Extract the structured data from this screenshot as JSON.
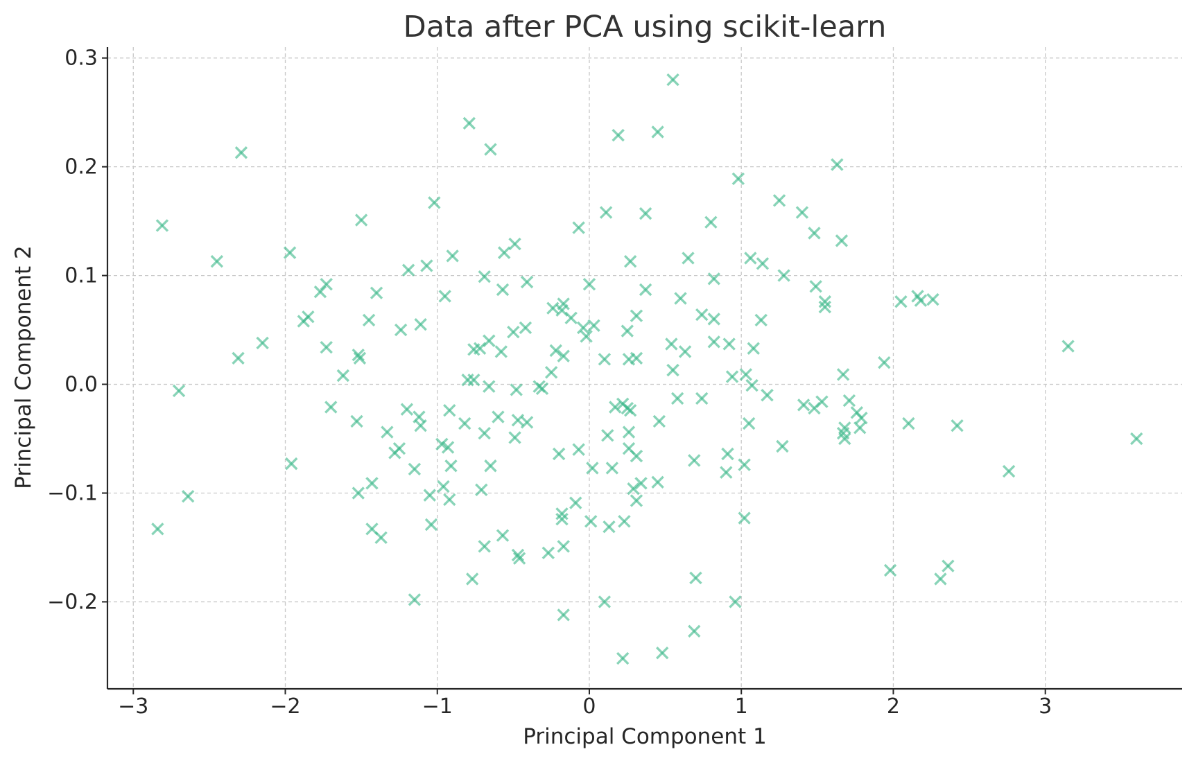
{
  "chart_data": {
    "type": "scatter",
    "title": "Data after PCA using scikit-learn",
    "xlabel": "Principal Component 1",
    "ylabel": "Principal Component 2",
    "xlim": [
      -3.17,
      3.9
    ],
    "ylim": [
      -0.28,
      0.31
    ],
    "x_ticks": [
      -3,
      -2,
      -1,
      0,
      1,
      2,
      3
    ],
    "x_tick_labels": [
      "−3",
      "−2",
      "−1",
      "0",
      "1",
      "2",
      "3"
    ],
    "y_ticks": [
      -0.2,
      -0.1,
      0.0,
      0.1,
      0.2,
      0.3
    ],
    "y_tick_labels": [
      "−0.2",
      "−0.1",
      "0.0",
      "0.1",
      "0.2",
      "0.3"
    ],
    "grid": true,
    "marker": "x",
    "color": "#3cb88a",
    "points": [
      [
        0.55,
        0.28
      ],
      [
        -0.79,
        0.24
      ],
      [
        -0.65,
        0.216
      ],
      [
        0.19,
        0.229
      ],
      [
        0.45,
        0.232
      ],
      [
        -2.29,
        0.213
      ],
      [
        1.63,
        0.202
      ],
      [
        0.98,
        0.189
      ],
      [
        -1.02,
        0.167
      ],
      [
        -2.81,
        0.146
      ],
      [
        -1.5,
        0.151
      ],
      [
        0.11,
        0.158
      ],
      [
        0.37,
        0.157
      ],
      [
        0.8,
        0.149
      ],
      [
        -0.07,
        0.144
      ],
      [
        1.25,
        0.169
      ],
      [
        1.4,
        0.158
      ],
      [
        1.48,
        0.139
      ],
      [
        1.66,
        0.132
      ],
      [
        -0.49,
        0.129
      ],
      [
        -0.56,
        0.121
      ],
      [
        -1.97,
        0.121
      ],
      [
        -0.9,
        0.118
      ],
      [
        -2.45,
        0.113
      ],
      [
        0.27,
        0.113
      ],
      [
        0.65,
        0.116
      ],
      [
        1.06,
        0.116
      ],
      [
        1.14,
        0.111
      ],
      [
        -1.07,
        0.109
      ],
      [
        -1.19,
        0.105
      ],
      [
        -0.69,
        0.099
      ],
      [
        0.82,
        0.097
      ],
      [
        1.28,
        0.1
      ],
      [
        -1.73,
        0.092
      ],
      [
        -1.4,
        0.084
      ],
      [
        -1.77,
        0.085
      ],
      [
        -0.41,
        0.094
      ],
      [
        0.0,
        0.092
      ],
      [
        0.37,
        0.087
      ],
      [
        -0.57,
        0.087
      ],
      [
        1.49,
        0.09
      ],
      [
        -0.95,
        0.081
      ],
      [
        0.6,
        0.079
      ],
      [
        1.55,
        0.076
      ],
      [
        1.55,
        0.071
      ],
      [
        2.05,
        0.076
      ],
      [
        2.16,
        0.081
      ],
      [
        2.18,
        0.077
      ],
      [
        2.26,
        0.078
      ],
      [
        -0.17,
        0.074
      ],
      [
        -0.24,
        0.07
      ],
      [
        -0.18,
        0.068
      ],
      [
        -1.85,
        0.062
      ],
      [
        -1.88,
        0.058
      ],
      [
        -1.45,
        0.059
      ],
      [
        -1.11,
        0.055
      ],
      [
        -0.12,
        0.061
      ],
      [
        0.31,
        0.063
      ],
      [
        0.74,
        0.064
      ],
      [
        0.82,
        0.06
      ],
      [
        1.13,
        0.059
      ],
      [
        -0.42,
        0.052
      ],
      [
        -0.5,
        0.048
      ],
      [
        -0.04,
        0.052
      ],
      [
        0.03,
        0.054
      ],
      [
        -1.24,
        0.05
      ],
      [
        0.25,
        0.049
      ],
      [
        -0.02,
        0.044
      ],
      [
        -2.15,
        0.038
      ],
      [
        -1.73,
        0.034
      ],
      [
        -0.66,
        0.04
      ],
      [
        -0.72,
        0.033
      ],
      [
        -0.76,
        0.032
      ],
      [
        -0.58,
        0.03
      ],
      [
        -0.22,
        0.031
      ],
      [
        -0.17,
        0.026
      ],
      [
        0.54,
        0.037
      ],
      [
        0.82,
        0.039
      ],
      [
        0.92,
        0.037
      ],
      [
        1.08,
        0.033
      ],
      [
        3.15,
        0.035
      ],
      [
        -2.31,
        0.024
      ],
      [
        -1.52,
        0.027
      ],
      [
        -1.51,
        0.024
      ],
      [
        0.1,
        0.023
      ],
      [
        0.26,
        0.023
      ],
      [
        0.31,
        0.024
      ],
      [
        0.63,
        0.03
      ],
      [
        -1.62,
        0.008
      ],
      [
        -0.8,
        0.004
      ],
      [
        -0.76,
        0.004
      ],
      [
        -0.25,
        0.011
      ],
      [
        0.55,
        0.013
      ],
      [
        0.94,
        0.007
      ],
      [
        1.03,
        0.009
      ],
      [
        1.67,
        0.009
      ],
      [
        1.94,
        0.02
      ],
      [
        -2.7,
        -0.006
      ],
      [
        -0.66,
        -0.002
      ],
      [
        -0.48,
        -0.005
      ],
      [
        -0.33,
        -0.002
      ],
      [
        -0.31,
        -0.004
      ],
      [
        1.07,
        -0.001
      ],
      [
        1.17,
        -0.01
      ],
      [
        0.74,
        -0.013
      ],
      [
        0.58,
        -0.013
      ],
      [
        -1.7,
        -0.021
      ],
      [
        -1.53,
        -0.034
      ],
      [
        -1.2,
        -0.023
      ],
      [
        -0.92,
        -0.024
      ],
      [
        -0.82,
        -0.036
      ],
      [
        -0.6,
        -0.03
      ],
      [
        -0.47,
        -0.033
      ],
      [
        -0.41,
        -0.035
      ],
      [
        0.17,
        -0.021
      ],
      [
        0.22,
        -0.018
      ],
      [
        0.25,
        -0.022
      ],
      [
        0.27,
        -0.024
      ],
      [
        0.46,
        -0.034
      ],
      [
        1.05,
        -0.036
      ],
      [
        1.41,
        -0.019
      ],
      [
        1.48,
        -0.022
      ],
      [
        1.53,
        -0.016
      ],
      [
        1.71,
        -0.015
      ],
      [
        1.76,
        -0.026
      ],
      [
        1.79,
        -0.031
      ],
      [
        1.78,
        -0.04
      ],
      [
        1.68,
        -0.04
      ],
      [
        2.1,
        -0.036
      ],
      [
        2.42,
        -0.038
      ],
      [
        -1.11,
        -0.038
      ],
      [
        -1.12,
        -0.03
      ],
      [
        -1.33,
        -0.044
      ],
      [
        -0.69,
        -0.045
      ],
      [
        -0.49,
        -0.049
      ],
      [
        0.12,
        -0.047
      ],
      [
        0.26,
        -0.044
      ],
      [
        1.67,
        -0.045
      ],
      [
        1.68,
        -0.05
      ],
      [
        3.6,
        -0.05
      ],
      [
        -1.25,
        -0.059
      ],
      [
        -1.28,
        -0.063
      ],
      [
        -0.97,
        -0.055
      ],
      [
        -0.93,
        -0.058
      ],
      [
        -0.91,
        -0.075
      ],
      [
        -0.65,
        -0.075
      ],
      [
        -0.2,
        -0.064
      ],
      [
        -0.07,
        -0.06
      ],
      [
        0.26,
        -0.059
      ],
      [
        0.31,
        -0.066
      ],
      [
        0.91,
        -0.064
      ],
      [
        1.27,
        -0.057
      ],
      [
        -1.96,
        -0.073
      ],
      [
        -1.15,
        -0.078
      ],
      [
        0.02,
        -0.077
      ],
      [
        0.15,
        -0.077
      ],
      [
        0.69,
        -0.07
      ],
      [
        1.02,
        -0.074
      ],
      [
        0.9,
        -0.081
      ],
      [
        2.76,
        -0.08
      ],
      [
        -1.52,
        -0.1
      ],
      [
        -1.43,
        -0.091
      ],
      [
        -1.05,
        -0.102
      ],
      [
        -0.96,
        -0.094
      ],
      [
        -0.92,
        -0.106
      ],
      [
        -0.71,
        -0.097
      ],
      [
        -0.09,
        -0.109
      ],
      [
        0.29,
        -0.096
      ],
      [
        0.31,
        -0.107
      ],
      [
        0.34,
        -0.091
      ],
      [
        0.45,
        -0.09
      ],
      [
        -2.64,
        -0.103
      ],
      [
        -2.84,
        -0.133
      ],
      [
        -1.43,
        -0.133
      ],
      [
        -1.37,
        -0.141
      ],
      [
        -1.04,
        -0.129
      ],
      [
        -0.18,
        -0.119
      ],
      [
        -0.18,
        -0.124
      ],
      [
        0.01,
        -0.126
      ],
      [
        0.13,
        -0.131
      ],
      [
        0.23,
        -0.126
      ],
      [
        1.02,
        -0.123
      ],
      [
        -0.69,
        -0.149
      ],
      [
        -0.57,
        -0.139
      ],
      [
        -0.47,
        -0.157
      ],
      [
        -0.46,
        -0.16
      ],
      [
        -0.27,
        -0.155
      ],
      [
        -0.17,
        -0.149
      ],
      [
        -0.77,
        -0.179
      ],
      [
        0.7,
        -0.178
      ],
      [
        1.98,
        -0.171
      ],
      [
        2.31,
        -0.179
      ],
      [
        2.36,
        -0.167
      ],
      [
        -1.15,
        -0.198
      ],
      [
        0.1,
        -0.2
      ],
      [
        0.96,
        -0.2
      ],
      [
        -0.17,
        -0.212
      ],
      [
        0.69,
        -0.227
      ],
      [
        0.48,
        -0.247
      ],
      [
        0.22,
        -0.252
      ]
    ]
  }
}
